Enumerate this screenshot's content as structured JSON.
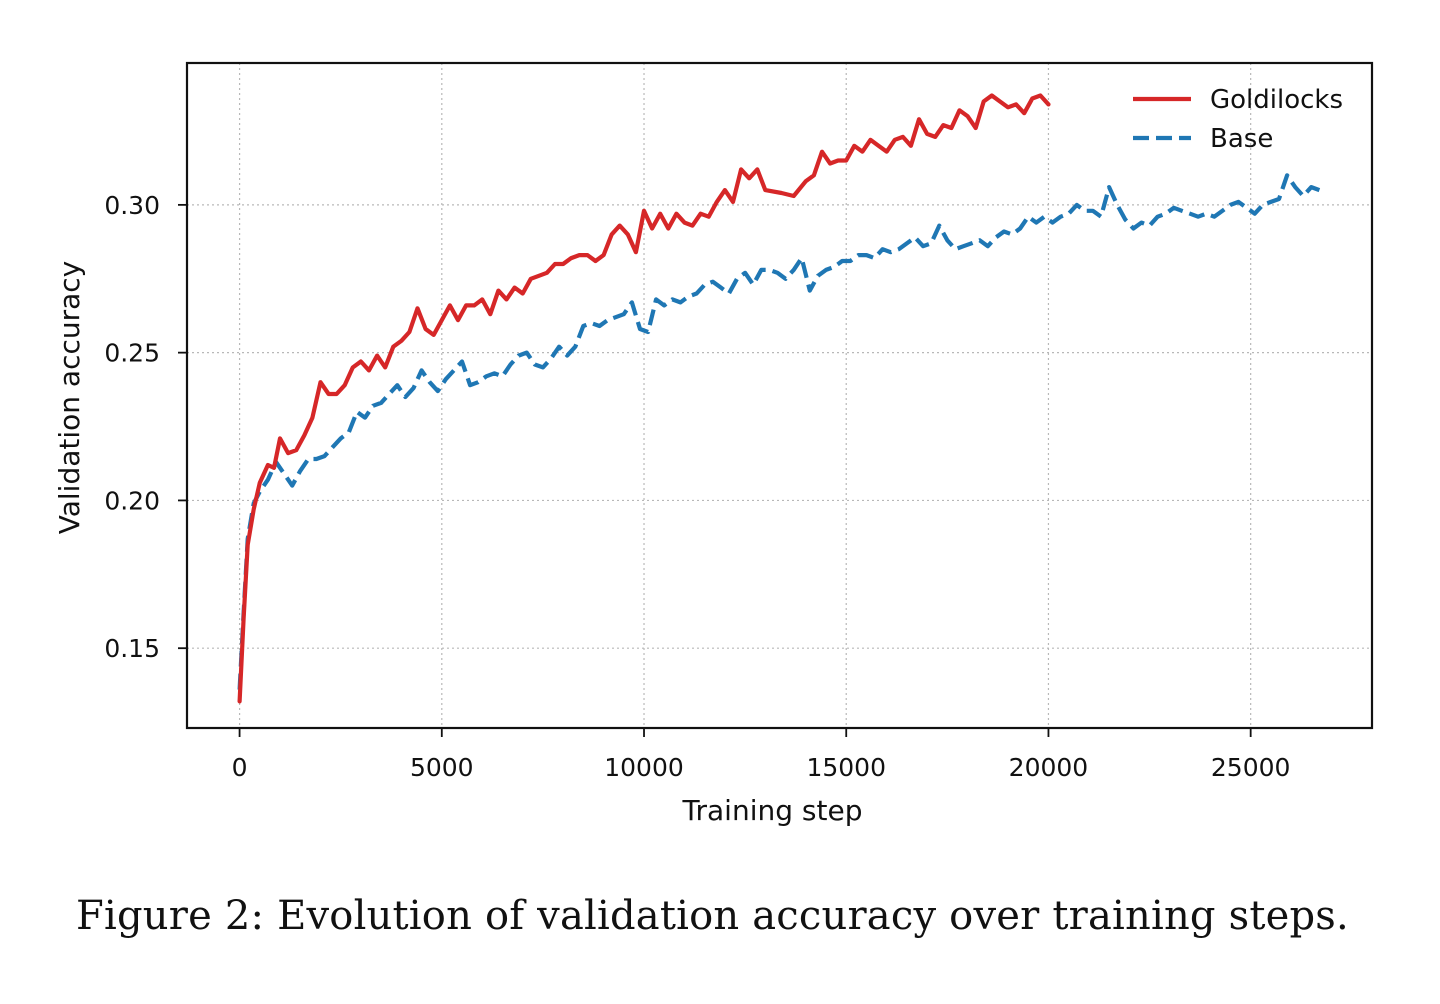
{
  "caption": "Figure 2: Evolution of validation accuracy over training steps.",
  "colors": {
    "goldilocks": "#d62728",
    "base": "#1f77b4"
  },
  "chart_data": {
    "type": "line",
    "title": "",
    "xlabel": "Training step",
    "ylabel": "Validation accuracy",
    "xlim": [
      -1300,
      28000
    ],
    "ylim": [
      0.123,
      0.348
    ],
    "xticks": [
      0,
      5000,
      10000,
      15000,
      20000,
      25000
    ],
    "xtick_labels": [
      "0",
      "5000",
      "10000",
      "15000",
      "20000",
      "25000"
    ],
    "yticks": [
      0.15,
      0.2,
      0.25,
      0.3
    ],
    "ytick_labels": [
      "0.15",
      "0.20",
      "0.25",
      "0.30"
    ],
    "grid": true,
    "legend_position": "top-right",
    "series": [
      {
        "name": "Goldilocks",
        "style": "solid",
        "color": "#d62728",
        "points": [
          [
            0,
            0.132
          ],
          [
            100,
            0.16
          ],
          [
            200,
            0.185
          ],
          [
            350,
            0.197
          ],
          [
            500,
            0.206
          ],
          [
            700,
            0.212
          ],
          [
            850,
            0.211
          ],
          [
            1000,
            0.221
          ],
          [
            1200,
            0.216
          ],
          [
            1400,
            0.217
          ],
          [
            1600,
            0.222
          ],
          [
            1800,
            0.228
          ],
          [
            2000,
            0.24
          ],
          [
            2200,
            0.236
          ],
          [
            2400,
            0.236
          ],
          [
            2600,
            0.239
          ],
          [
            2800,
            0.245
          ],
          [
            3000,
            0.247
          ],
          [
            3200,
            0.244
          ],
          [
            3400,
            0.249
          ],
          [
            3600,
            0.245
          ],
          [
            3800,
            0.252
          ],
          [
            4000,
            0.254
          ],
          [
            4200,
            0.257
          ],
          [
            4400,
            0.265
          ],
          [
            4600,
            0.258
          ],
          [
            4800,
            0.256
          ],
          [
            5000,
            0.261
          ],
          [
            5200,
            0.266
          ],
          [
            5400,
            0.261
          ],
          [
            5600,
            0.266
          ],
          [
            5800,
            0.266
          ],
          [
            6000,
            0.268
          ],
          [
            6200,
            0.263
          ],
          [
            6400,
            0.271
          ],
          [
            6600,
            0.268
          ],
          [
            6800,
            0.272
          ],
          [
            7000,
            0.27
          ],
          [
            7200,
            0.275
          ],
          [
            7400,
            0.276
          ],
          [
            7600,
            0.277
          ],
          [
            7800,
            0.28
          ],
          [
            8000,
            0.28
          ],
          [
            8200,
            0.282
          ],
          [
            8400,
            0.283
          ],
          [
            8600,
            0.283
          ],
          [
            8800,
            0.281
          ],
          [
            9000,
            0.283
          ],
          [
            9200,
            0.29
          ],
          [
            9400,
            0.293
          ],
          [
            9600,
            0.29
          ],
          [
            9800,
            0.284
          ],
          [
            10000,
            0.298
          ],
          [
            10200,
            0.292
          ],
          [
            10400,
            0.297
          ],
          [
            10600,
            0.292
          ],
          [
            10800,
            0.297
          ],
          [
            11000,
            0.294
          ],
          [
            11200,
            0.293
          ],
          [
            11400,
            0.297
          ],
          [
            11600,
            0.296
          ],
          [
            11800,
            0.301
          ],
          [
            12000,
            0.305
          ],
          [
            12200,
            0.301
          ],
          [
            12400,
            0.312
          ],
          [
            12600,
            0.309
          ],
          [
            12800,
            0.312
          ],
          [
            13000,
            0.305
          ],
          [
            13400,
            0.304
          ],
          [
            13700,
            0.303
          ],
          [
            14000,
            0.308
          ],
          [
            14200,
            0.31
          ],
          [
            14400,
            0.318
          ],
          [
            14600,
            0.314
          ],
          [
            14800,
            0.315
          ],
          [
            15000,
            0.315
          ],
          [
            15200,
            0.32
          ],
          [
            15400,
            0.318
          ],
          [
            15600,
            0.322
          ],
          [
            15800,
            0.32
          ],
          [
            16000,
            0.318
          ],
          [
            16200,
            0.322
          ],
          [
            16400,
            0.323
          ],
          [
            16600,
            0.32
          ],
          [
            16800,
            0.329
          ],
          [
            17000,
            0.324
          ],
          [
            17200,
            0.323
          ],
          [
            17400,
            0.327
          ],
          [
            17600,
            0.326
          ],
          [
            17800,
            0.332
          ],
          [
            18000,
            0.33
          ],
          [
            18200,
            0.326
          ],
          [
            18400,
            0.335
          ],
          [
            18600,
            0.337
          ],
          [
            18800,
            0.335
          ],
          [
            19000,
            0.333
          ],
          [
            19200,
            0.334
          ],
          [
            19400,
            0.331
          ],
          [
            19600,
            0.336
          ],
          [
            19800,
            0.337
          ],
          [
            20000,
            0.334
          ]
        ]
      },
      {
        "name": "Base",
        "style": "dashed",
        "color": "#1f77b4",
        "points": [
          [
            0,
            0.136
          ],
          [
            100,
            0.162
          ],
          [
            200,
            0.187
          ],
          [
            350,
            0.199
          ],
          [
            500,
            0.203
          ],
          [
            700,
            0.207
          ],
          [
            900,
            0.213
          ],
          [
            1100,
            0.209
          ],
          [
            1300,
            0.205
          ],
          [
            1500,
            0.21
          ],
          [
            1700,
            0.214
          ],
          [
            1900,
            0.214
          ],
          [
            2100,
            0.215
          ],
          [
            2300,
            0.218
          ],
          [
            2500,
            0.221
          ],
          [
            2700,
            0.223
          ],
          [
            2900,
            0.23
          ],
          [
            3100,
            0.228
          ],
          [
            3300,
            0.232
          ],
          [
            3500,
            0.233
          ],
          [
            3700,
            0.236
          ],
          [
            3900,
            0.239
          ],
          [
            4100,
            0.235
          ],
          [
            4300,
            0.238
          ],
          [
            4500,
            0.244
          ],
          [
            4700,
            0.24
          ],
          [
            4900,
            0.237
          ],
          [
            5100,
            0.241
          ],
          [
            5300,
            0.244
          ],
          [
            5500,
            0.247
          ],
          [
            5700,
            0.239
          ],
          [
            5900,
            0.24
          ],
          [
            6100,
            0.242
          ],
          [
            6300,
            0.243
          ],
          [
            6500,
            0.242
          ],
          [
            6700,
            0.246
          ],
          [
            6900,
            0.249
          ],
          [
            7100,
            0.25
          ],
          [
            7300,
            0.246
          ],
          [
            7500,
            0.245
          ],
          [
            7700,
            0.248
          ],
          [
            7900,
            0.252
          ],
          [
            8100,
            0.249
          ],
          [
            8300,
            0.252
          ],
          [
            8500,
            0.259
          ],
          [
            8700,
            0.26
          ],
          [
            8900,
            0.259
          ],
          [
            9100,
            0.261
          ],
          [
            9300,
            0.262
          ],
          [
            9500,
            0.263
          ],
          [
            9700,
            0.267
          ],
          [
            9900,
            0.258
          ],
          [
            10100,
            0.257
          ],
          [
            10300,
            0.268
          ],
          [
            10500,
            0.266
          ],
          [
            10700,
            0.268
          ],
          [
            10900,
            0.267
          ],
          [
            11100,
            0.269
          ],
          [
            11300,
            0.27
          ],
          [
            11500,
            0.273
          ],
          [
            11700,
            0.274
          ],
          [
            11900,
            0.272
          ],
          [
            12100,
            0.27
          ],
          [
            12300,
            0.275
          ],
          [
            12500,
            0.277
          ],
          [
            12700,
            0.273
          ],
          [
            12900,
            0.278
          ],
          [
            13100,
            0.278
          ],
          [
            13300,
            0.277
          ],
          [
            13500,
            0.275
          ],
          [
            13700,
            0.278
          ],
          [
            13900,
            0.282
          ],
          [
            14100,
            0.271
          ],
          [
            14300,
            0.276
          ],
          [
            14500,
            0.278
          ],
          [
            14700,
            0.279
          ],
          [
            14900,
            0.281
          ],
          [
            15100,
            0.281
          ],
          [
            15300,
            0.283
          ],
          [
            15500,
            0.283
          ],
          [
            15700,
            0.282
          ],
          [
            15900,
            0.285
          ],
          [
            16100,
            0.284
          ],
          [
            16300,
            0.285
          ],
          [
            16500,
            0.287
          ],
          [
            16700,
            0.289
          ],
          [
            16900,
            0.286
          ],
          [
            17100,
            0.287
          ],
          [
            17300,
            0.293
          ],
          [
            17500,
            0.288
          ],
          [
            17700,
            0.285
          ],
          [
            17900,
            0.286
          ],
          [
            18100,
            0.287
          ],
          [
            18300,
            0.288
          ],
          [
            18500,
            0.286
          ],
          [
            18700,
            0.289
          ],
          [
            18900,
            0.291
          ],
          [
            19100,
            0.29
          ],
          [
            19300,
            0.292
          ],
          [
            19500,
            0.296
          ],
          [
            19700,
            0.294
          ],
          [
            19900,
            0.296
          ],
          [
            20100,
            0.294
          ],
          [
            20300,
            0.296
          ],
          [
            20500,
            0.297
          ],
          [
            20700,
            0.3
          ],
          [
            20900,
            0.298
          ],
          [
            21100,
            0.298
          ],
          [
            21300,
            0.296
          ],
          [
            21500,
            0.306
          ],
          [
            21700,
            0.3
          ],
          [
            21900,
            0.295
          ],
          [
            22100,
            0.292
          ],
          [
            22300,
            0.294
          ],
          [
            22500,
            0.293
          ],
          [
            22700,
            0.296
          ],
          [
            22900,
            0.297
          ],
          [
            23100,
            0.299
          ],
          [
            23300,
            0.298
          ],
          [
            23500,
            0.297
          ],
          [
            23700,
            0.296
          ],
          [
            23900,
            0.297
          ],
          [
            24100,
            0.296
          ],
          [
            24300,
            0.298
          ],
          [
            24500,
            0.3
          ],
          [
            24700,
            0.301
          ],
          [
            24900,
            0.299
          ],
          [
            25100,
            0.297
          ],
          [
            25300,
            0.3
          ],
          [
            25500,
            0.301
          ],
          [
            25700,
            0.302
          ],
          [
            25900,
            0.31
          ],
          [
            26100,
            0.306
          ],
          [
            26300,
            0.303
          ],
          [
            26500,
            0.306
          ],
          [
            26700,
            0.305
          ]
        ]
      }
    ]
  }
}
